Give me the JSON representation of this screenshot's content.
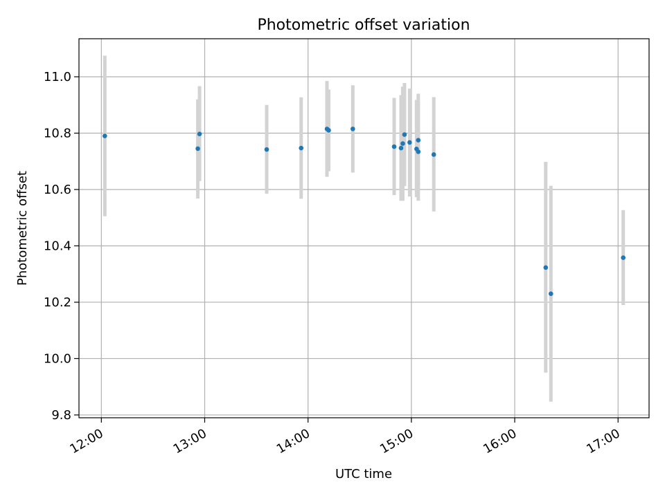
{
  "chart_data": {
    "type": "scatter",
    "title": "Photometric offset variation",
    "xlabel": "UTC time",
    "ylabel": "Photometric offset",
    "x_axis_type": "time",
    "xlim": [
      "11:47",
      "17:18"
    ],
    "ylim": [
      9.79,
      11.135
    ],
    "x_ticks": [
      "12:00",
      "13:00",
      "14:00",
      "15:00",
      "16:00",
      "17:00"
    ],
    "y_ticks": [
      9.8,
      10.0,
      10.2,
      10.4,
      10.6,
      10.8,
      11.0
    ],
    "grid": true,
    "colors": {
      "points": "#1f77b4",
      "error_bars": "#d3d3d3",
      "grid": "#b0b0b0"
    },
    "points": [
      {
        "x": "12:02",
        "y": 10.79,
        "ylow": 10.505,
        "yhigh": 11.075
      },
      {
        "x": "12:56",
        "y": 10.745,
        "ylow": 10.568,
        "yhigh": 10.92
      },
      {
        "x": "12:57",
        "y": 10.797,
        "ylow": 10.63,
        "yhigh": 10.967
      },
      {
        "x": "13:36",
        "y": 10.742,
        "ylow": 10.585,
        "yhigh": 10.9
      },
      {
        "x": "13:56",
        "y": 10.747,
        "ylow": 10.567,
        "yhigh": 10.927
      },
      {
        "x": "14:11",
        "y": 10.815,
        "ylow": 10.645,
        "yhigh": 10.985
      },
      {
        "x": "14:12",
        "y": 10.81,
        "ylow": 10.665,
        "yhigh": 10.955
      },
      {
        "x": "14:26",
        "y": 10.815,
        "ylow": 10.66,
        "yhigh": 10.97
      },
      {
        "x": "14:50",
        "y": 10.752,
        "ylow": 10.58,
        "yhigh": 10.925
      },
      {
        "x": "14:54",
        "y": 10.747,
        "ylow": 10.56,
        "yhigh": 10.935
      },
      {
        "x": "14:55",
        "y": 10.763,
        "ylow": 10.56,
        "yhigh": 10.965
      },
      {
        "x": "14:56",
        "y": 10.795,
        "ylow": 10.612,
        "yhigh": 10.978
      },
      {
        "x": "14:59",
        "y": 10.767,
        "ylow": 10.575,
        "yhigh": 10.958
      },
      {
        "x": "15:03",
        "y": 10.744,
        "ylow": 10.573,
        "yhigh": 10.918
      },
      {
        "x": "15:04",
        "y": 10.775,
        "ylow": 10.612,
        "yhigh": 10.94
      },
      {
        "x": "15:04",
        "y": 10.734,
        "ylow": 10.56,
        "yhigh": 10.91
      },
      {
        "x": "15:13",
        "y": 10.724,
        "ylow": 10.522,
        "yhigh": 10.928
      },
      {
        "x": "16:18",
        "y": 10.323,
        "ylow": 9.95,
        "yhigh": 10.698
      },
      {
        "x": "16:21",
        "y": 10.23,
        "ylow": 9.847,
        "yhigh": 10.613
      },
      {
        "x": "17:03",
        "y": 10.358,
        "ylow": 10.19,
        "yhigh": 10.527
      }
    ]
  }
}
